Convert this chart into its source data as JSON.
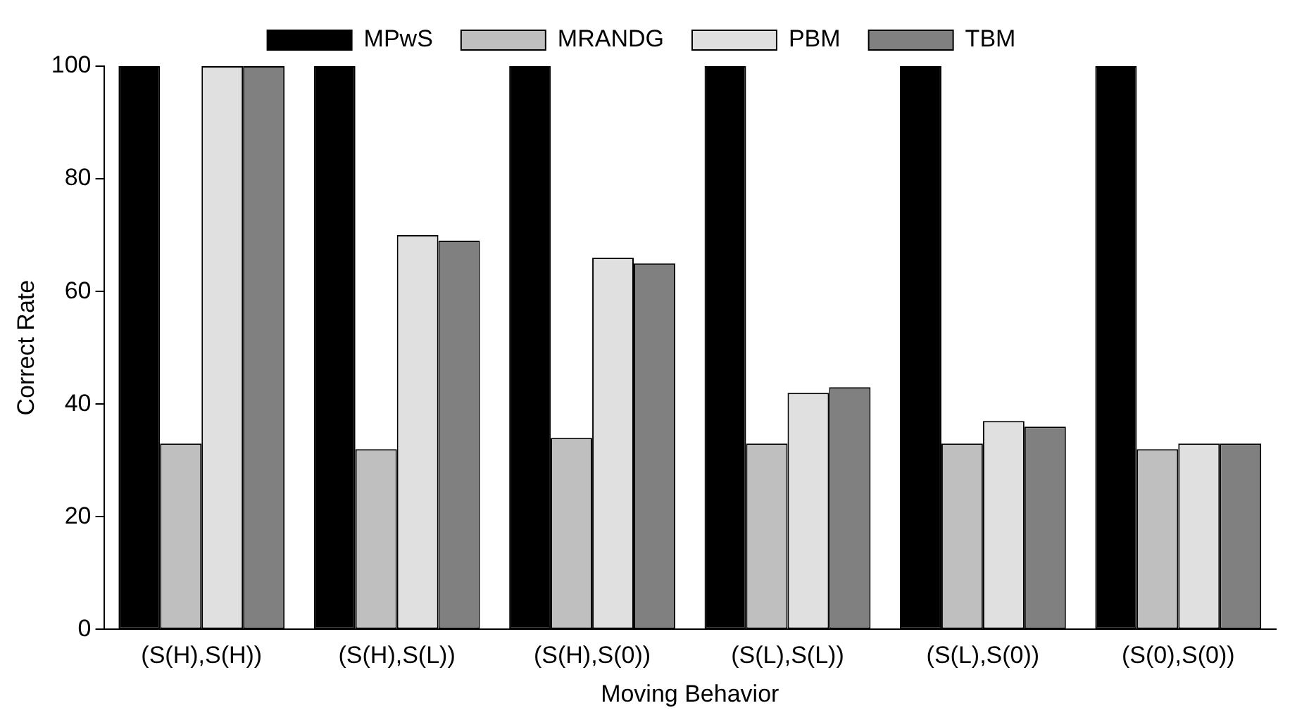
{
  "chart_data": {
    "type": "bar",
    "xlabel": "Moving Behavior",
    "ylabel": "Correct Rate",
    "categories": [
      "(S(H),S(H))",
      "(S(H),S(L))",
      "(S(H),S(0))",
      "(S(L),S(L))",
      "(S(L),S(0))",
      "(S(0),S(0))"
    ],
    "series": [
      {
        "name": "MPwS",
        "color": "#000000",
        "values": [
          100,
          100,
          100,
          100,
          100,
          100
        ]
      },
      {
        "name": "MRANDG",
        "color": "#bfbfbf",
        "values": [
          33,
          32,
          34,
          33,
          33,
          32
        ]
      },
      {
        "name": "PBM",
        "color": "#e0e0e0",
        "values": [
          100,
          70,
          66,
          42,
          37,
          33
        ]
      },
      {
        "name": "TBM",
        "color": "#808080",
        "values": [
          100,
          69,
          65,
          43,
          36,
          33
        ]
      }
    ],
    "ylim": [
      0,
      100
    ],
    "yticks": [
      0,
      20,
      40,
      60,
      80,
      100
    ],
    "grid": false,
    "legend": "top"
  }
}
